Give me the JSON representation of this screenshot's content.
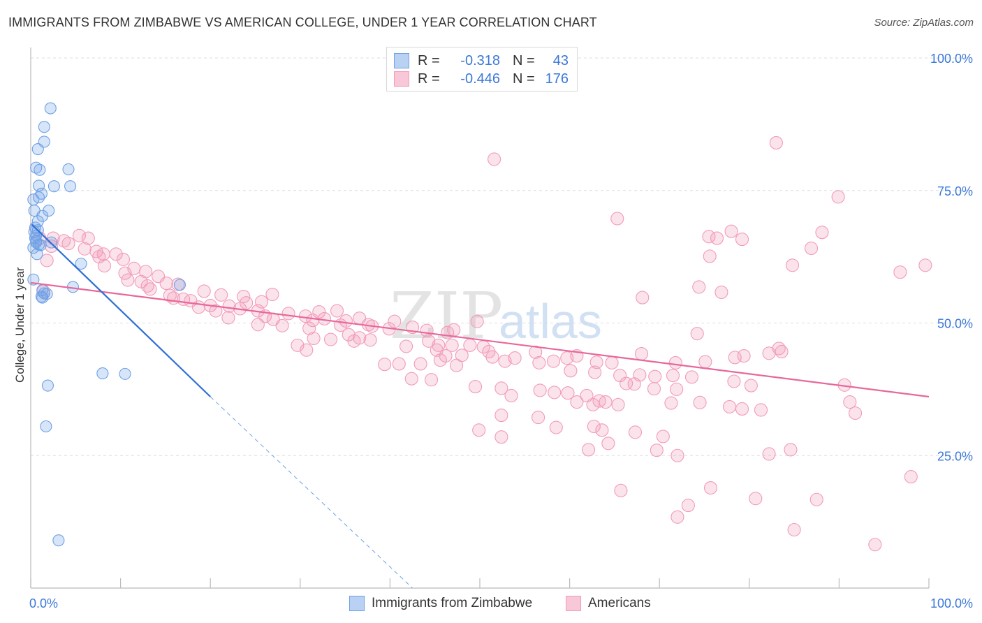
{
  "title": "IMMIGRANTS FROM ZIMBABWE VS AMERICAN COLLEGE, UNDER 1 YEAR CORRELATION CHART",
  "source": "Source: ZipAtlas.com",
  "watermark": {
    "zip": "ZIP",
    "atlas": "atlas"
  },
  "legend_top": {
    "rows": [
      {
        "r_label": "R =",
        "r_value": "-0.318",
        "n_label": "N =",
        "n_value": "43"
      },
      {
        "r_label": "R =",
        "r_value": "-0.446",
        "n_label": "N =",
        "n_value": "176"
      }
    ]
  },
  "legend_bottom": {
    "items": [
      {
        "label": "Immigrants from Zimbabwe"
      },
      {
        "label": "Americans"
      }
    ]
  },
  "colors": {
    "blue": "#6fa0e6",
    "blue_line": "#2f6fd6",
    "pink": "#f29bb8",
    "pink_line": "#e8679a",
    "tick_text": "#3b78d8"
  },
  "chart_data": {
    "type": "scatter",
    "title": "IMMIGRANTS FROM ZIMBABWE VS AMERICAN COLLEGE, UNDER 1 YEAR CORRELATION CHART",
    "xlabel": "",
    "ylabel": "College, Under 1 year",
    "x_tick_labels": [
      "0.0%",
      "100.0%"
    ],
    "y_tick_labels": [
      "25.0%",
      "50.0%",
      "75.0%",
      "100.0%"
    ],
    "xlim": [
      0,
      100
    ],
    "ylim": [
      0,
      100
    ],
    "grid": true,
    "legend": "bottom",
    "series": [
      {
        "name": "Immigrants from Zimbabwe",
        "R": -0.318,
        "N": 43,
        "trend": {
          "x0": 0.1,
          "y0": 68.6,
          "x1": 20.0,
          "y1": 36.1,
          "dash_x1": 42.5,
          "dash_y1": 0
        },
        "points": [
          [
            2.2,
            90.5
          ],
          [
            1.5,
            87.0
          ],
          [
            1.5,
            84.2
          ],
          [
            0.8,
            82.8
          ],
          [
            0.6,
            79.3
          ],
          [
            1.0,
            78.9
          ],
          [
            4.2,
            79.0
          ],
          [
            0.9,
            75.9
          ],
          [
            2.6,
            75.8
          ],
          [
            4.4,
            75.8
          ],
          [
            1.2,
            74.4
          ],
          [
            0.9,
            73.7
          ],
          [
            0.3,
            73.3
          ],
          [
            0.4,
            71.2
          ],
          [
            2.0,
            71.2
          ],
          [
            1.3,
            70.2
          ],
          [
            0.8,
            69.2
          ],
          [
            0.5,
            68.0
          ],
          [
            0.4,
            67.2
          ],
          [
            0.6,
            66.5
          ],
          [
            0.5,
            66.0
          ],
          [
            0.6,
            65.5
          ],
          [
            2.3,
            65.2
          ],
          [
            0.6,
            65.2
          ],
          [
            0.9,
            64.8
          ],
          [
            0.7,
            63.0
          ],
          [
            5.6,
            61.2
          ],
          [
            16.6,
            57.2
          ],
          [
            4.7,
            56.8
          ],
          [
            1.3,
            56.2
          ],
          [
            1.8,
            55.5
          ],
          [
            1.5,
            55.6
          ],
          [
            1.2,
            55.0
          ],
          [
            1.3,
            54.8
          ],
          [
            0.3,
            58.2
          ],
          [
            8.0,
            40.5
          ],
          [
            10.5,
            40.4
          ],
          [
            1.9,
            38.2
          ],
          [
            1.7,
            30.5
          ],
          [
            3.1,
            9.0
          ],
          [
            0.3,
            64.2
          ],
          [
            1.1,
            64.7
          ],
          [
            0.8,
            67.5
          ]
        ]
      },
      {
        "name": "Americans",
        "R": -0.446,
        "N": 176,
        "trend": {
          "x0": 0,
          "y0": 57.6,
          "x1": 100,
          "y1": 36.1
        },
        "points": [
          [
            1.0,
            66.0
          ],
          [
            2.5,
            66.0
          ],
          [
            3.7,
            65.5
          ],
          [
            5.4,
            66.5
          ],
          [
            6.4,
            66.0
          ],
          [
            4.2,
            65.0
          ],
          [
            2.3,
            64.5
          ],
          [
            6.0,
            64.0
          ],
          [
            7.3,
            63.5
          ],
          [
            8.1,
            63.0
          ],
          [
            7.6,
            62.5
          ],
          [
            9.5,
            63.0
          ],
          [
            10.3,
            62.0
          ],
          [
            8.2,
            60.8
          ],
          [
            1.8,
            61.8
          ],
          [
            11.5,
            60.3
          ],
          [
            12.8,
            59.7
          ],
          [
            10.5,
            59.4
          ],
          [
            14.2,
            58.8
          ],
          [
            12.3,
            57.8
          ],
          [
            10.8,
            58.1
          ],
          [
            13.0,
            57.0
          ],
          [
            15.1,
            57.5
          ],
          [
            16.4,
            57.3
          ],
          [
            19.3,
            56.0
          ],
          [
            1.4,
            56.0
          ],
          [
            13.3,
            56.4
          ],
          [
            15.5,
            55.2
          ],
          [
            17.0,
            54.5
          ],
          [
            15.9,
            54.7
          ],
          [
            21.2,
            55.3
          ],
          [
            23.7,
            55.0
          ],
          [
            26.9,
            55.4
          ],
          [
            17.8,
            54.2
          ],
          [
            20.0,
            53.3
          ],
          [
            22.1,
            53.2
          ],
          [
            24.0,
            53.8
          ],
          [
            25.7,
            54.0
          ],
          [
            18.7,
            53.0
          ],
          [
            20.6,
            52.3
          ],
          [
            23.3,
            52.7
          ],
          [
            25.3,
            52.3
          ],
          [
            28.7,
            51.8
          ],
          [
            30.6,
            51.3
          ],
          [
            22.0,
            51.0
          ],
          [
            26.1,
            51.3
          ],
          [
            27.0,
            50.7
          ],
          [
            31.4,
            50.5
          ],
          [
            32.1,
            52.1
          ],
          [
            34.1,
            52.3
          ],
          [
            32.7,
            50.8
          ],
          [
            35.1,
            50.4
          ],
          [
            36.6,
            50.9
          ],
          [
            38.0,
            49.4
          ],
          [
            25.3,
            49.7
          ],
          [
            28.0,
            49.5
          ],
          [
            31.0,
            49.0
          ],
          [
            34.5,
            49.6
          ],
          [
            37.6,
            49.7
          ],
          [
            39.9,
            48.9
          ],
          [
            40.5,
            50.3
          ],
          [
            42.5,
            49.2
          ],
          [
            44.1,
            48.6
          ],
          [
            46.4,
            48.2
          ],
          [
            47.1,
            48.7
          ],
          [
            49.7,
            50.3
          ],
          [
            31.5,
            47.1
          ],
          [
            33.4,
            46.9
          ],
          [
            35.4,
            47.8
          ],
          [
            36.6,
            47.2
          ],
          [
            37.8,
            46.8
          ],
          [
            44.3,
            46.6
          ],
          [
            45.4,
            45.8
          ],
          [
            46.9,
            45.8
          ],
          [
            48.9,
            45.8
          ],
          [
            50.4,
            45.5
          ],
          [
            29.7,
            45.8
          ],
          [
            30.7,
            44.9
          ],
          [
            36.0,
            46.6
          ],
          [
            41.8,
            45.6
          ],
          [
            45.2,
            44.9
          ],
          [
            46.2,
            43.8
          ],
          [
            48.0,
            43.9
          ],
          [
            51.0,
            44.6
          ],
          [
            51.4,
            43.6
          ],
          [
            53.9,
            43.4
          ],
          [
            56.2,
            44.5
          ],
          [
            58.2,
            42.8
          ],
          [
            59.7,
            43.4
          ],
          [
            60.8,
            43.8
          ],
          [
            63.0,
            42.6
          ],
          [
            64.7,
            42.5
          ],
          [
            68.0,
            44.2
          ],
          [
            71.8,
            42.5
          ],
          [
            75.1,
            42.7
          ],
          [
            78.4,
            43.5
          ],
          [
            79.4,
            43.8
          ],
          [
            82.2,
            44.3
          ],
          [
            83.6,
            44.6
          ],
          [
            39.4,
            42.2
          ],
          [
            41.0,
            42.3
          ],
          [
            43.4,
            42.3
          ],
          [
            45.6,
            43.0
          ],
          [
            47.4,
            42.0
          ],
          [
            52.8,
            42.8
          ],
          [
            56.6,
            42.5
          ],
          [
            60.1,
            41.0
          ],
          [
            62.8,
            40.7
          ],
          [
            65.6,
            40.1
          ],
          [
            67.8,
            40.2
          ],
          [
            69.5,
            39.9
          ],
          [
            71.5,
            40.1
          ],
          [
            42.4,
            39.5
          ],
          [
            44.6,
            39.3
          ],
          [
            49.5,
            38.0
          ],
          [
            52.4,
            37.7
          ],
          [
            53.5,
            36.3
          ],
          [
            56.7,
            37.3
          ],
          [
            58.3,
            36.9
          ],
          [
            59.8,
            36.8
          ],
          [
            61.9,
            36.3
          ],
          [
            64.0,
            35.1
          ],
          [
            66.3,
            38.6
          ],
          [
            67.2,
            38.5
          ],
          [
            69.4,
            37.6
          ],
          [
            71.9,
            37.5
          ],
          [
            73.6,
            39.8
          ],
          [
            80.2,
            38.2
          ],
          [
            78.3,
            39.0
          ],
          [
            90.6,
            38.3
          ],
          [
            91.2,
            35.1
          ],
          [
            60.8,
            35.1
          ],
          [
            62.6,
            34.6
          ],
          [
            63.3,
            35.3
          ],
          [
            65.4,
            34.6
          ],
          [
            71.3,
            34.9
          ],
          [
            74.5,
            35.0
          ],
          [
            77.8,
            34.2
          ],
          [
            79.2,
            33.8
          ],
          [
            81.3,
            33.6
          ],
          [
            91.8,
            33.0
          ],
          [
            52.4,
            32.6
          ],
          [
            56.5,
            32.2
          ],
          [
            58.5,
            30.3
          ],
          [
            62.7,
            30.5
          ],
          [
            63.6,
            29.8
          ],
          [
            67.3,
            29.4
          ],
          [
            70.4,
            28.6
          ],
          [
            49.9,
            29.8
          ],
          [
            52.4,
            28.5
          ],
          [
            64.3,
            27.3
          ],
          [
            62.1,
            26.1
          ],
          [
            69.7,
            26.0
          ],
          [
            72.0,
            25.0
          ],
          [
            82.2,
            25.3
          ],
          [
            84.6,
            26.1
          ],
          [
            65.7,
            18.4
          ],
          [
            72.0,
            13.4
          ],
          [
            73.2,
            15.6
          ],
          [
            75.7,
            18.9
          ],
          [
            80.7,
            16.9
          ],
          [
            85.0,
            11.0
          ],
          [
            87.5,
            16.7
          ],
          [
            94.0,
            8.2
          ],
          [
            98.0,
            21.0
          ],
          [
            51.6,
            80.9
          ],
          [
            83.0,
            84.0
          ],
          [
            89.9,
            73.8
          ],
          [
            65.3,
            69.7
          ],
          [
            75.5,
            66.3
          ],
          [
            76.4,
            66.0
          ],
          [
            78.0,
            67.3
          ],
          [
            79.2,
            65.8
          ],
          [
            88.1,
            67.1
          ],
          [
            86.9,
            64.1
          ],
          [
            75.6,
            62.6
          ],
          [
            84.8,
            60.9
          ],
          [
            96.8,
            59.6
          ],
          [
            99.6,
            60.9
          ],
          [
            68.1,
            54.8
          ],
          [
            74.4,
            56.8
          ],
          [
            76.9,
            55.8
          ],
          [
            74.2,
            48.0
          ],
          [
            83.3,
            45.2
          ]
        ]
      }
    ]
  }
}
